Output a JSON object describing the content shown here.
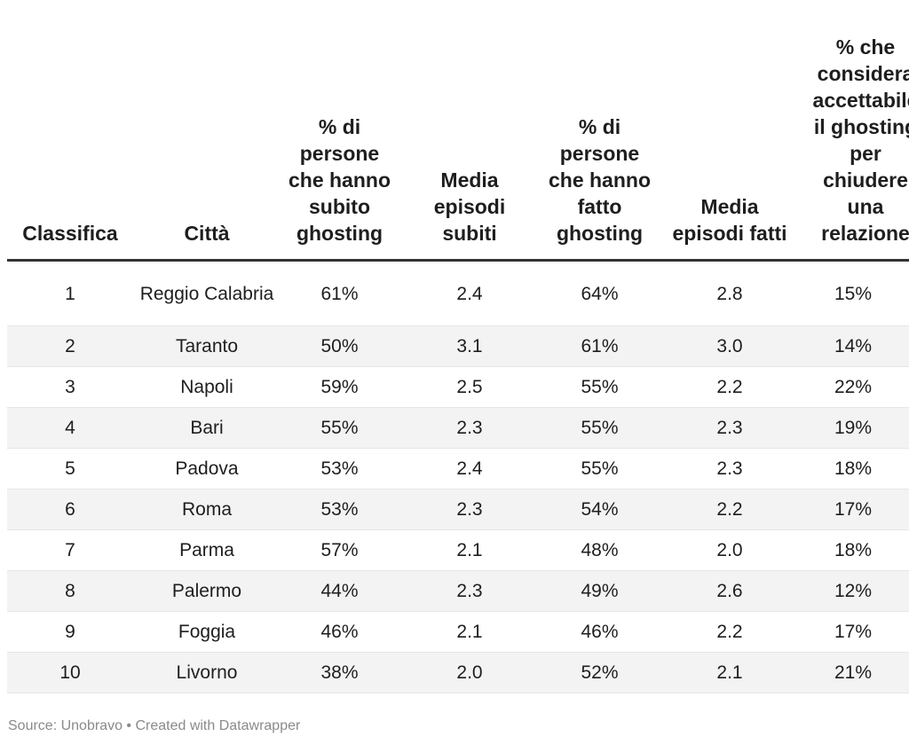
{
  "chart_data": {
    "type": "table",
    "columns": [
      "Classifica",
      "Città",
      "% di persone che hanno subito ghosting",
      "Media episodi subiti",
      "% di persone che hanno fatto ghosting",
      "Media episodi fatti",
      "% che considera accettabile il ghosting per chiudere una relazione"
    ],
    "rows": [
      [
        "1",
        "Reggio Calabria",
        "61%",
        "2.4",
        "64%",
        "2.8",
        "15%"
      ],
      [
        "2",
        "Taranto",
        "50%",
        "3.1",
        "61%",
        "3.0",
        "14%"
      ],
      [
        "3",
        "Napoli",
        "59%",
        "2.5",
        "55%",
        "2.2",
        "22%"
      ],
      [
        "4",
        "Bari",
        "55%",
        "2.3",
        "55%",
        "2.3",
        "19%"
      ],
      [
        "5",
        "Padova",
        "53%",
        "2.4",
        "55%",
        "2.3",
        "18%"
      ],
      [
        "6",
        "Roma",
        "53%",
        "2.3",
        "54%",
        "2.2",
        "17%"
      ],
      [
        "7",
        "Parma",
        "57%",
        "2.1",
        "48%",
        "2.0",
        "18%"
      ],
      [
        "8",
        "Palermo",
        "44%",
        "2.3",
        "49%",
        "2.6",
        "12%"
      ],
      [
        "9",
        "Foggia",
        "46%",
        "2.1",
        "46%",
        "2.2",
        "17%"
      ],
      [
        "10",
        "Livorno",
        "38%",
        "2.0",
        "52%",
        "2.1",
        "21%"
      ]
    ],
    "source": "Source: Unobravo • Created with Datawrapper"
  }
}
